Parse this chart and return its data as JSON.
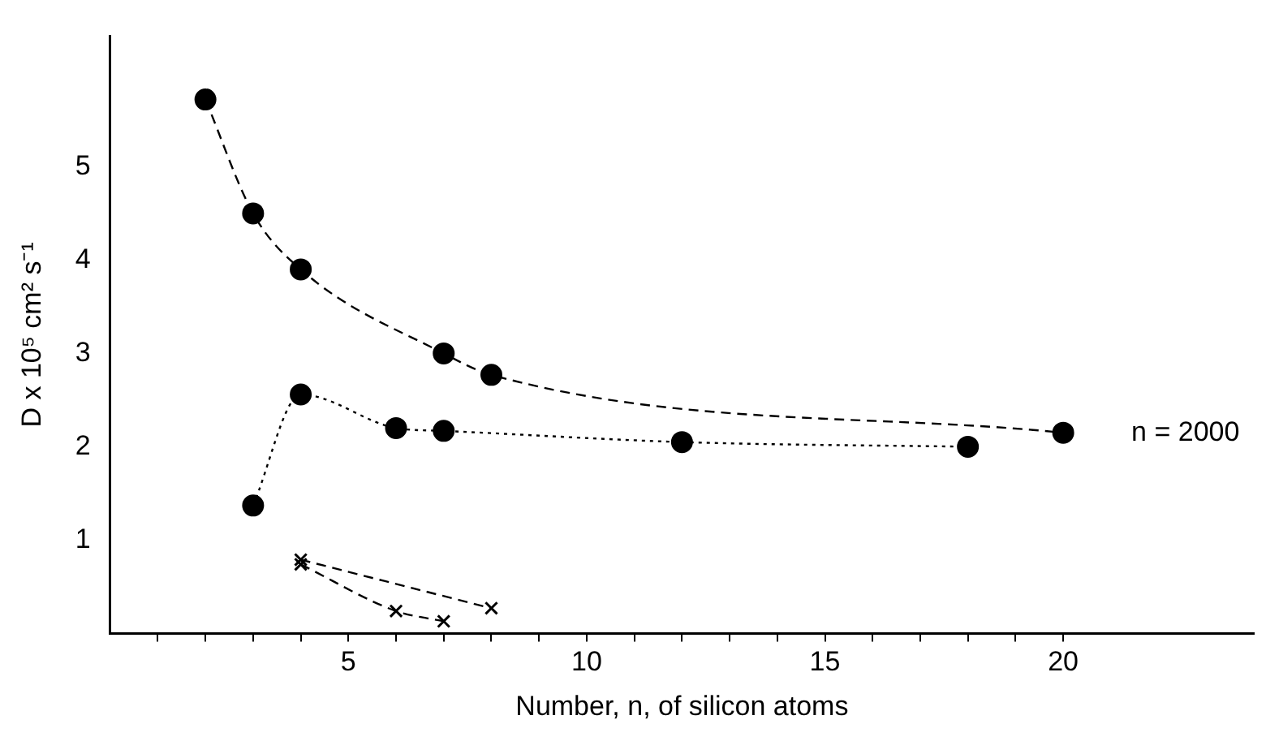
{
  "chart_data": {
    "type": "line",
    "xlabel": "Number, n, of silicon atoms",
    "ylabel": "D x 10⁵ cm² s⁻¹",
    "xlim": [
      0,
      24
    ],
    "ylim": [
      0,
      6.4
    ],
    "xticks": [
      {
        "value": 1,
        "label": null
      },
      {
        "value": 2,
        "label": null
      },
      {
        "value": 3,
        "label": null
      },
      {
        "value": 4,
        "label": null
      },
      5,
      {
        "value": 6,
        "label": null
      },
      {
        "value": 7,
        "label": null
      },
      {
        "value": 8,
        "label": null
      },
      {
        "value": 9,
        "label": null
      },
      10,
      {
        "value": 11,
        "label": null
      },
      {
        "value": 12,
        "label": null
      },
      {
        "value": 13,
        "label": null
      },
      {
        "value": 14,
        "label": null
      },
      15,
      {
        "value": 16,
        "label": null
      },
      {
        "value": 17,
        "label": null
      },
      {
        "value": 18,
        "label": null
      },
      {
        "value": 19,
        "label": null
      },
      20
    ],
    "yticks": [
      1,
      2,
      3,
      4,
      5
    ],
    "grid": false,
    "legend": false,
    "series": [
      {
        "color": "#000000",
        "marker": "circle",
        "line_style": "dashed",
        "x": [
          2,
          3,
          4,
          7,
          8,
          20
        ],
        "values": [
          5.72,
          4.5,
          3.9,
          3.0,
          2.77,
          2.15
        ]
      },
      {
        "color": "#000000",
        "marker": "circle",
        "line_style": "dotted",
        "x": [
          3,
          4,
          6,
          7,
          12,
          18
        ],
        "values": [
          1.37,
          2.56,
          2.2,
          2.17,
          2.05,
          2.0
        ]
      },
      {
        "color": "#000000",
        "marker": "cross",
        "line_style": "dashed",
        "x": [
          4,
          8
        ],
        "values": [
          0.79,
          0.27
        ]
      },
      {
        "color": "#000000",
        "marker": "cross",
        "line_style": "dashed",
        "x": [
          4,
          6,
          7
        ],
        "values": [
          0.74,
          0.24,
          0.13
        ]
      }
    ],
    "annotations": [
      {
        "text": "n = 2000",
        "x": 20,
        "y": 2.15
      }
    ]
  }
}
